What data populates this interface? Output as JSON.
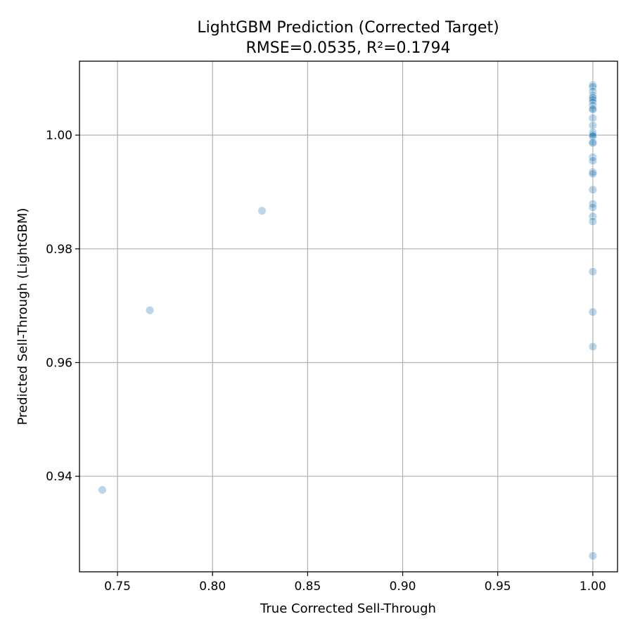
{
  "chart_data": {
    "type": "scatter",
    "title": "LightGBM Prediction (Corrected Target)",
    "subtitle": "RMSE=0.0535, R²=0.1794",
    "xlabel": "True Corrected Sell-Through",
    "ylabel": "Predicted Sell-Through (LightGBM)",
    "xlim": [
      0.73,
      1.013
    ],
    "ylim": [
      0.9232,
      1.013
    ],
    "xticks": [
      0.75,
      0.8,
      0.85,
      0.9,
      0.95,
      1.0
    ],
    "xtick_labels": [
      "0.75",
      "0.80",
      "0.85",
      "0.90",
      "0.95",
      "1.00"
    ],
    "yticks": [
      0.94,
      0.96,
      0.98,
      1.0
    ],
    "ytick_labels": [
      "0.94",
      "0.96",
      "0.98",
      "1.00"
    ],
    "grid": true,
    "marker_color": "#1f77b4",
    "marker_opacity": 0.3,
    "points": [
      {
        "x": 0.742,
        "y": 0.9376
      },
      {
        "x": 0.767,
        "y": 0.9692
      },
      {
        "x": 0.826,
        "y": 0.9867
      },
      {
        "x": 1.0,
        "y": 1.0088
      },
      {
        "x": 1.0,
        "y": 1.0085
      },
      {
        "x": 1.0,
        "y": 1.0077
      },
      {
        "x": 1.0,
        "y": 1.007
      },
      {
        "x": 1.0,
        "y": 1.0067
      },
      {
        "x": 1.0,
        "y": 1.0065
      },
      {
        "x": 1.0,
        "y": 1.0062
      },
      {
        "x": 1.0,
        "y": 1.0058
      },
      {
        "x": 1.0,
        "y": 1.0052
      },
      {
        "x": 1.0,
        "y": 1.0047
      },
      {
        "x": 1.0,
        "y": 1.0045
      },
      {
        "x": 1.0,
        "y": 1.003
      },
      {
        "x": 1.0,
        "y": 1.0017
      },
      {
        "x": 1.0,
        "y": 1.0005
      },
      {
        "x": 1.0,
        "y": 1.0002
      },
      {
        "x": 1.0,
        "y": 1.0
      },
      {
        "x": 1.0,
        "y": 0.9998
      },
      {
        "x": 1.0,
        "y": 0.9988
      },
      {
        "x": 1.0,
        "y": 0.9986
      },
      {
        "x": 1.0,
        "y": 0.9961
      },
      {
        "x": 1.0,
        "y": 0.9955
      },
      {
        "x": 1.0,
        "y": 0.9935
      },
      {
        "x": 1.0,
        "y": 0.9932
      },
      {
        "x": 1.0,
        "y": 0.9904
      },
      {
        "x": 1.0,
        "y": 0.9879
      },
      {
        "x": 1.0,
        "y": 0.9873
      },
      {
        "x": 1.0,
        "y": 0.9857
      },
      {
        "x": 1.0,
        "y": 0.9848
      },
      {
        "x": 1.0,
        "y": 0.976
      },
      {
        "x": 1.0,
        "y": 0.9689
      },
      {
        "x": 1.0,
        "y": 0.9628
      },
      {
        "x": 1.0,
        "y": 0.926
      }
    ]
  }
}
